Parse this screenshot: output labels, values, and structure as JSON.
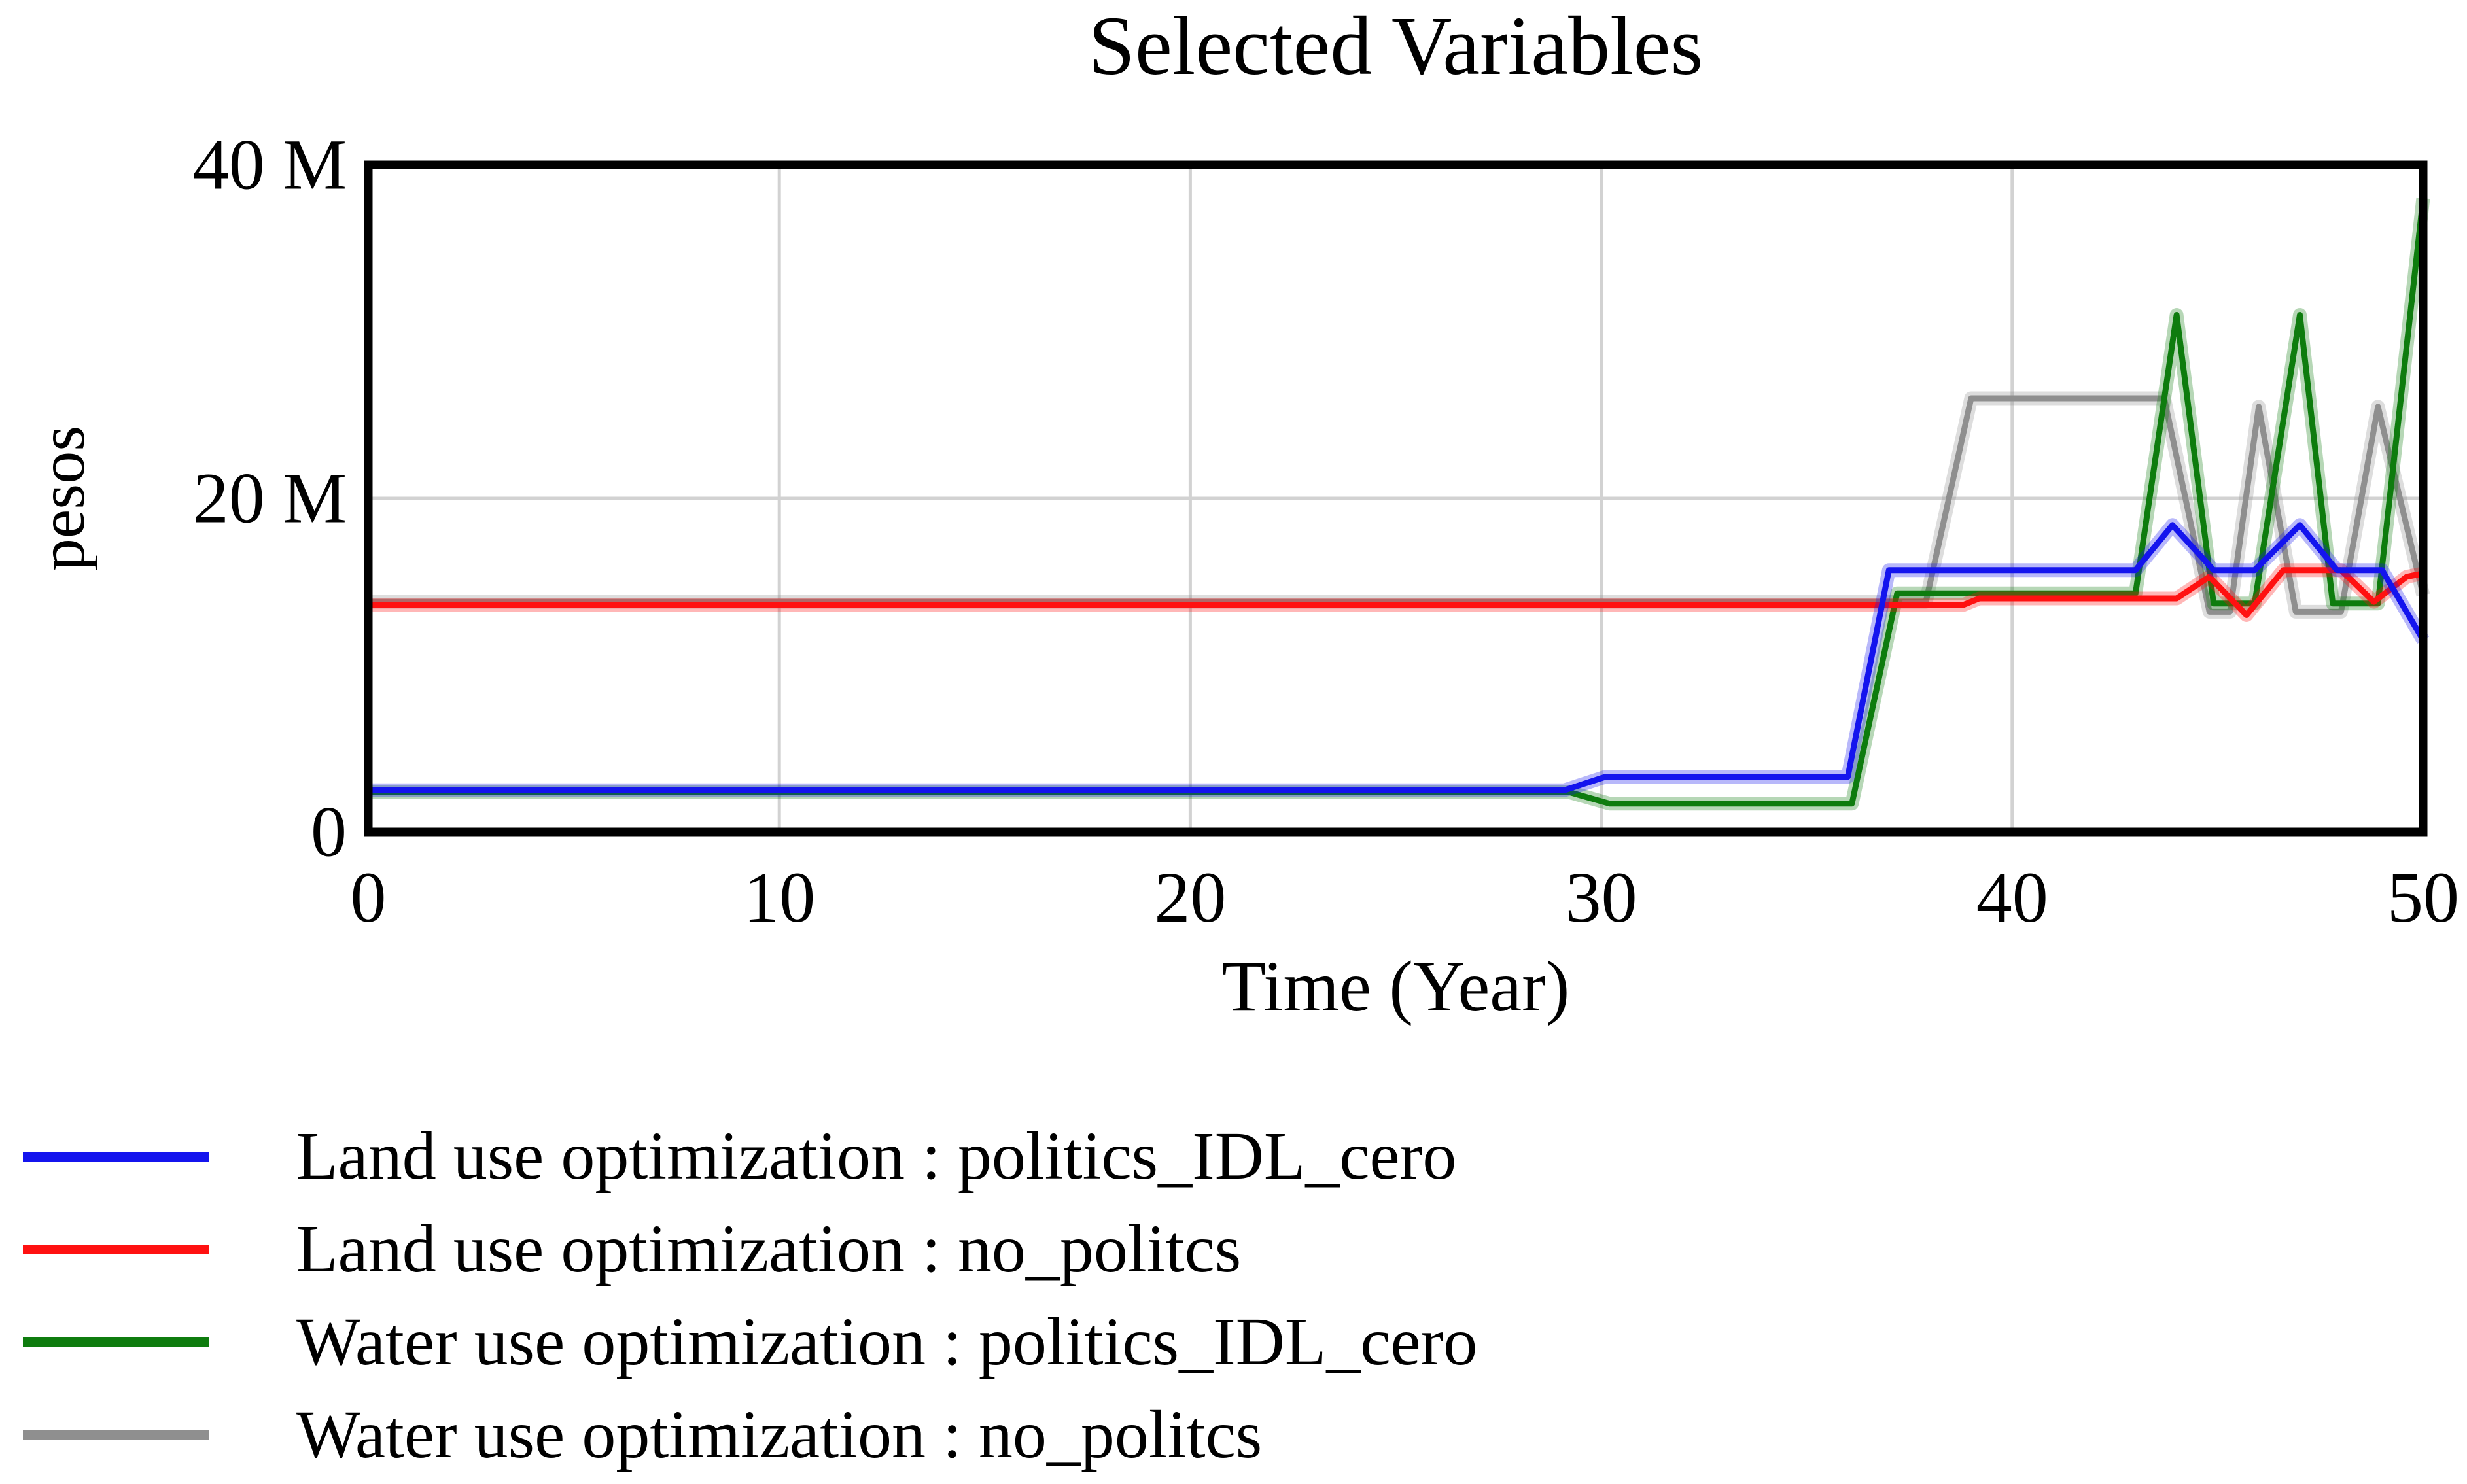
{
  "title": "Selected Variables",
  "chart_data": {
    "type": "line",
    "title": "Selected Variables",
    "xlabel": "Time (Year)",
    "ylabel": "pesos",
    "value_unit": "millions of pesos",
    "xlim": [
      0,
      50
    ],
    "ylim": [
      0,
      40
    ],
    "legend_position": "bottom-left",
    "grid": {
      "x": [
        10,
        20,
        30,
        40
      ],
      "y": [
        20
      ]
    },
    "grid_color": "#d2d2d2",
    "frame_color": "#000000",
    "x_ticks": [
      {
        "v": 0,
        "label": "0"
      },
      {
        "v": 10,
        "label": "10"
      },
      {
        "v": 20,
        "label": "20"
      },
      {
        "v": 30,
        "label": "30"
      },
      {
        "v": 40,
        "label": "40"
      },
      {
        "v": 50,
        "label": "50"
      }
    ],
    "y_ticks": [
      {
        "v": 0,
        "label": "0"
      },
      {
        "v": 20,
        "label": "20 M"
      },
      {
        "v": 40,
        "label": "40 M"
      }
    ],
    "series": [
      {
        "id": "land-politics-idl-cero",
        "name": "Land use optimization : politics_IDL_cero",
        "color": "#1414ee",
        "points": [
          [
            0,
            2.5
          ],
          [
            29.1,
            2.5
          ],
          [
            30.1,
            3.3
          ],
          [
            36.0,
            3.3
          ],
          [
            37.0,
            15.7
          ],
          [
            43.0,
            15.7
          ],
          [
            43.9,
            18.4
          ],
          [
            44.9,
            15.7
          ],
          [
            45.9,
            15.7
          ],
          [
            47.0,
            18.4
          ],
          [
            47.9,
            15.7
          ],
          [
            49.0,
            15.7
          ],
          [
            50,
            11.5
          ]
        ]
      },
      {
        "id": "land-no-politcs",
        "name": "Land use optimization : no_politcs",
        "color": "#ff1111",
        "points": [
          [
            0,
            13.6
          ],
          [
            38.8,
            13.6
          ],
          [
            39.2,
            14.0
          ],
          [
            44.0,
            14.0
          ],
          [
            44.8,
            15.3
          ],
          [
            45.7,
            13.0
          ],
          [
            46.6,
            15.7
          ],
          [
            48.0,
            15.7
          ],
          [
            48.8,
            13.8
          ],
          [
            49.6,
            15.3
          ],
          [
            50,
            15.5
          ]
        ]
      },
      {
        "id": "water-politics-idl-cero",
        "name": "Water use optimization : politics_IDL_cero",
        "color": "#0e7c0e",
        "points": [
          [
            0,
            2.4
          ],
          [
            29.2,
            2.4
          ],
          [
            30.2,
            1.7
          ],
          [
            36.1,
            1.7
          ],
          [
            37.2,
            14.3
          ],
          [
            43.0,
            14.3
          ],
          [
            44.0,
            31.0
          ],
          [
            44.9,
            13.7
          ],
          [
            45.9,
            13.7
          ],
          [
            47.0,
            31.0
          ],
          [
            47.8,
            13.7
          ],
          [
            48.9,
            13.7
          ],
          [
            50,
            38.0
          ]
        ]
      },
      {
        "id": "water-no-politcs",
        "name": "Water use optimization : no_politcs",
        "color": "#8f8f8f",
        "points": [
          [
            0,
            13.8
          ],
          [
            37.9,
            13.8
          ],
          [
            39.0,
            26.0
          ],
          [
            43.7,
            26.0
          ],
          [
            44.8,
            13.2
          ],
          [
            45.3,
            13.2
          ],
          [
            46.0,
            25.5
          ],
          [
            46.9,
            13.2
          ],
          [
            48.0,
            13.2
          ],
          [
            48.9,
            25.5
          ],
          [
            50,
            14.2
          ]
        ]
      }
    ]
  }
}
